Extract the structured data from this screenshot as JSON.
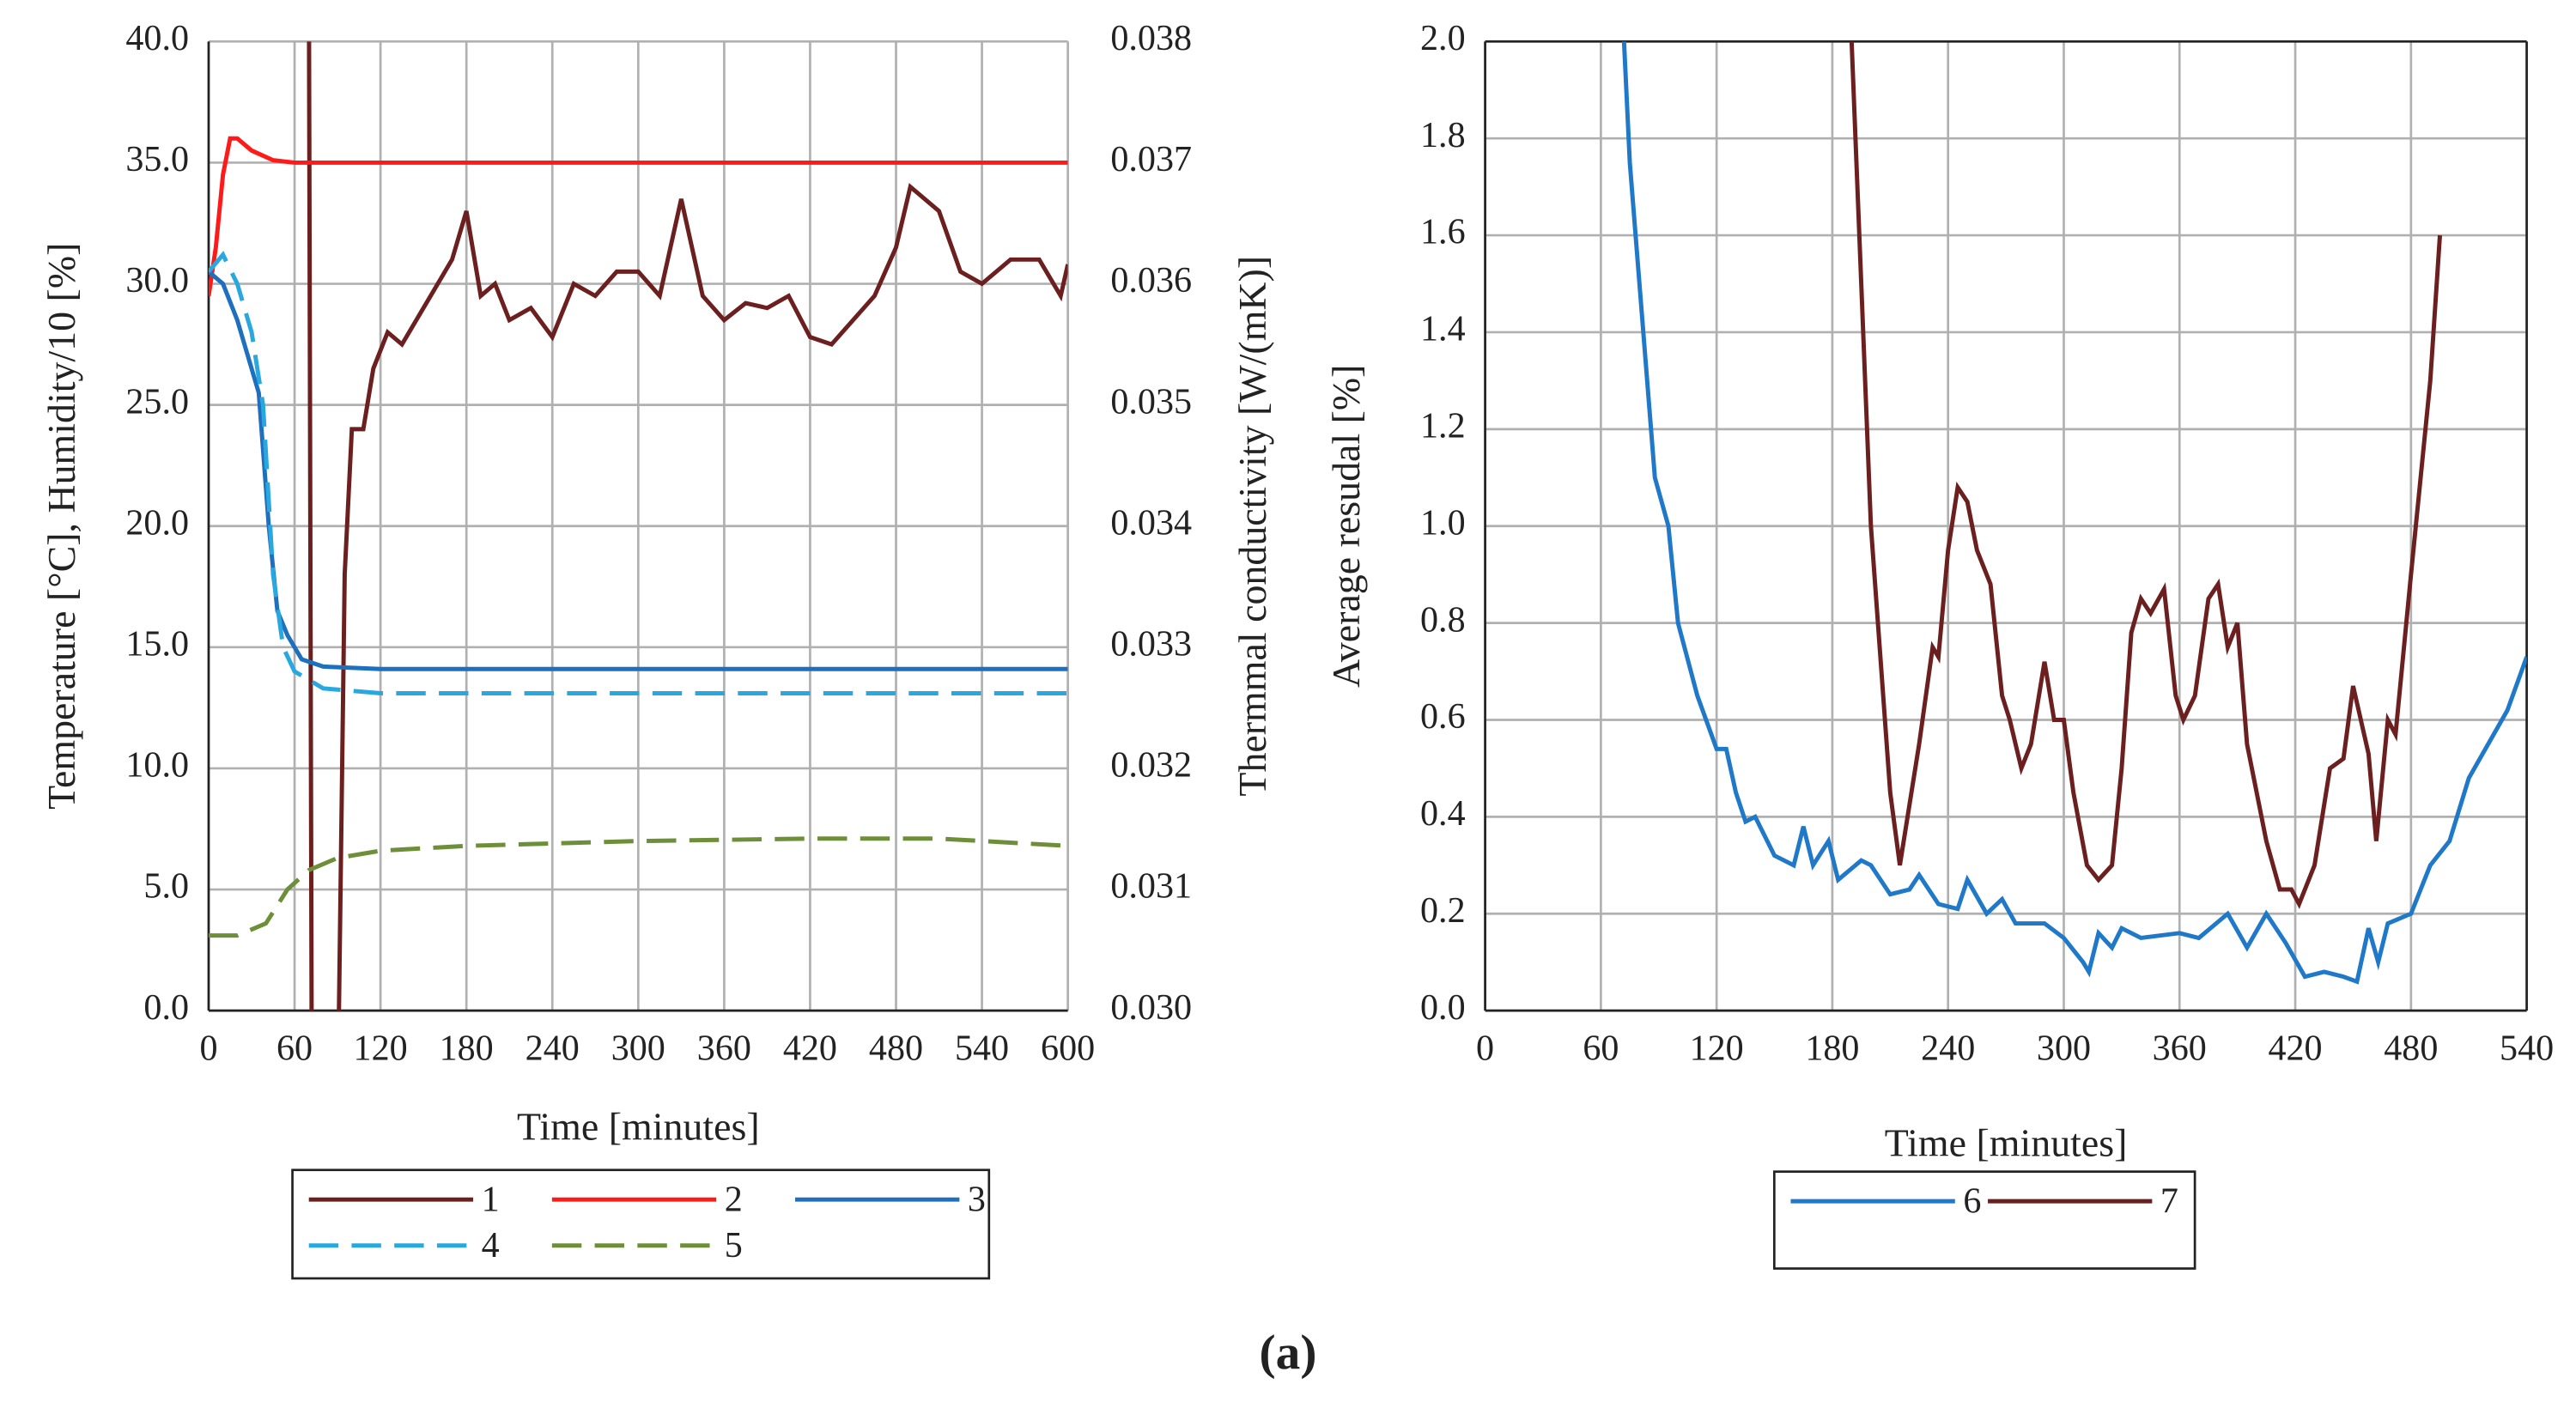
{
  "chart_data": [
    {
      "type": "line",
      "xlabel": "Time [minutes]",
      "ylabel": "Temperature [°C],  Humidity/10 [%]",
      "y2label": "Thermmal conductivity [W/(mK)]",
      "xlim": [
        0,
        600
      ],
      "xticks": [
        0,
        60,
        120,
        180,
        240,
        300,
        360,
        420,
        480,
        540,
        600
      ],
      "ylim": [
        0,
        40
      ],
      "yticks": [
        {
          "value": 0,
          "label": "0.0"
        },
        {
          "value": 5,
          "label": "5.0"
        },
        {
          "value": 10,
          "label": "10.0"
        },
        {
          "value": 15,
          "label": "15.0"
        },
        {
          "value": 20,
          "label": "20.0"
        },
        {
          "value": 25,
          "label": "25.0"
        },
        {
          "value": 30,
          "label": "30.0"
        },
        {
          "value": 35,
          "label": "35.0"
        },
        {
          "value": 40,
          "label": "40.0"
        }
      ],
      "y2lim": [
        0.03,
        0.038
      ],
      "y2ticks": [
        {
          "value": 0.03,
          "label": "0.030"
        },
        {
          "value": 0.031,
          "label": "0.031"
        },
        {
          "value": 0.032,
          "label": "0.032"
        },
        {
          "value": 0.033,
          "label": "0.033"
        },
        {
          "value": 0.034,
          "label": "0.034"
        },
        {
          "value": 0.035,
          "label": "0.035"
        },
        {
          "value": 0.036,
          "label": "0.036"
        },
        {
          "value": 0.037,
          "label": "0.037"
        },
        {
          "value": 0.038,
          "label": "0.038"
        }
      ],
      "grid": true,
      "series": [
        {
          "name": "1",
          "color": "#6b1f1f",
          "axis": "y2",
          "linestyle": "solid",
          "x": [
            70,
            72,
            90,
            91,
            95,
            100,
            108,
            115,
            125,
            135,
            145,
            160,
            170,
            180,
            190,
            200,
            210,
            225,
            240,
            255,
            270,
            285,
            300,
            315,
            330,
            345,
            360,
            375,
            390,
            405,
            420,
            435,
            450,
            465,
            480,
            490,
            510,
            525,
            540,
            560,
            580,
            595,
            600
          ],
          "values": [
            0.0385,
            0.0295,
            0.0295,
            0.03,
            0.0336,
            0.0348,
            0.0348,
            0.0353,
            0.0356,
            0.0355,
            0.0357,
            0.036,
            0.0362,
            0.0366,
            0.0359,
            0.036,
            0.0357,
            0.0358,
            0.03556,
            0.036,
            0.0359,
            0.0361,
            0.0361,
            0.0359,
            0.0367,
            0.0359,
            0.0357,
            0.03584,
            0.0358,
            0.0359,
            0.03556,
            0.0355,
            0.0357,
            0.0359,
            0.0363,
            0.0368,
            0.0366,
            0.0361,
            0.036,
            0.0362,
            0.0362,
            0.0359,
            0.03616
          ]
        },
        {
          "name": "2",
          "color": "#ff1a1a",
          "linestyle": "solid",
          "x": [
            0,
            5,
            10,
            15,
            20,
            30,
            45,
            60,
            600
          ],
          "values": [
            29.5,
            31.5,
            34.5,
            36,
            36,
            35.5,
            35.1,
            35,
            35
          ]
        },
        {
          "name": "3",
          "color": "#1f6fbf",
          "linestyle": "solid",
          "x": [
            0,
            10,
            20,
            35,
            42,
            48,
            55,
            65,
            80,
            120,
            600
          ],
          "values": [
            30.5,
            30,
            28.5,
            25.5,
            20,
            16.5,
            15.5,
            14.5,
            14.2,
            14.1,
            14.1
          ]
        },
        {
          "name": "4",
          "color": "#29a8e0",
          "linestyle": "dashed",
          "x": [
            0,
            10,
            20,
            30,
            38,
            45,
            52,
            60,
            80,
            120,
            600
          ],
          "values": [
            30.5,
            31.2,
            30,
            28,
            25,
            18,
            15,
            14,
            13.3,
            13.1,
            13.1
          ]
        },
        {
          "name": "5",
          "color": "#6e8f3a",
          "linestyle": "dashed",
          "x": [
            0,
            20,
            40,
            55,
            70,
            90,
            120,
            180,
            300,
            420,
            510,
            600
          ],
          "values": [
            3.1,
            3.1,
            3.6,
            5,
            5.8,
            6.3,
            6.6,
            6.8,
            7.0,
            7.1,
            7.1,
            6.8
          ]
        }
      ]
    },
    {
      "type": "line",
      "xlabel": "Time [minutes]",
      "ylabel": "Average resudal [%]",
      "xlim": [
        0,
        540
      ],
      "xticks": [
        0,
        60,
        120,
        180,
        240,
        300,
        360,
        420,
        480,
        540
      ],
      "ylim": [
        0,
        2
      ],
      "yticks": [
        {
          "value": 0,
          "label": "0.0"
        },
        {
          "value": 0.2,
          "label": "0.2"
        },
        {
          "value": 0.4,
          "label": "0.4"
        },
        {
          "value": 0.6,
          "label": "0.6"
        },
        {
          "value": 0.8,
          "label": "0.8"
        },
        {
          "value": 1,
          "label": "1.0"
        },
        {
          "value": 1.2,
          "label": "1.2"
        },
        {
          "value": 1.4,
          "label": "1.4"
        },
        {
          "value": 1.6,
          "label": "1.6"
        },
        {
          "value": 1.8,
          "label": "1.8"
        },
        {
          "value": 2,
          "label": "2.0"
        }
      ],
      "grid": true,
      "series": [
        {
          "name": "6",
          "color": "#1f78c8",
          "linestyle": "solid",
          "x": [
            72,
            75,
            80,
            88,
            95,
            100,
            110,
            120,
            125,
            130,
            135,
            140,
            150,
            160,
            165,
            170,
            178,
            183,
            195,
            200,
            210,
            220,
            225,
            235,
            245,
            250,
            260,
            268,
            275,
            290,
            300,
            310,
            313,
            318,
            325,
            330,
            340,
            360,
            370,
            385,
            395,
            405,
            415,
            425,
            435,
            445,
            452,
            458,
            463,
            468,
            480,
            490,
            500,
            510,
            520,
            530,
            540
          ],
          "values": [
            2.0,
            1.75,
            1.5,
            1.1,
            1.0,
            0.8,
            0.65,
            0.54,
            0.54,
            0.45,
            0.39,
            0.4,
            0.32,
            0.3,
            0.38,
            0.3,
            0.35,
            0.27,
            0.31,
            0.3,
            0.24,
            0.25,
            0.28,
            0.22,
            0.21,
            0.27,
            0.2,
            0.23,
            0.18,
            0.18,
            0.15,
            0.1,
            0.08,
            0.16,
            0.13,
            0.17,
            0.15,
            0.16,
            0.15,
            0.2,
            0.13,
            0.2,
            0.14,
            0.07,
            0.08,
            0.07,
            0.06,
            0.17,
            0.1,
            0.18,
            0.2,
            0.3,
            0.35,
            0.48,
            0.55,
            0.62,
            0.73
          ]
        },
        {
          "name": "7",
          "color": "#6b1f1f",
          "linestyle": "solid",
          "x": [
            190,
            195,
            200,
            210,
            215,
            225,
            232,
            235,
            240,
            245,
            250,
            255,
            262,
            268,
            272,
            278,
            283,
            290,
            295,
            300,
            305,
            312,
            318,
            325,
            330,
            335,
            340,
            345,
            352,
            358,
            362,
            368,
            375,
            380,
            385,
            390,
            395,
            405,
            412,
            418,
            422,
            430,
            438,
            445,
            450,
            458,
            462,
            468,
            472,
            480,
            490,
            495
          ],
          "values": [
            2.0,
            1.5,
            1.0,
            0.45,
            0.3,
            0.55,
            0.75,
            0.73,
            0.95,
            1.08,
            1.05,
            0.95,
            0.88,
            0.65,
            0.6,
            0.5,
            0.55,
            0.72,
            0.6,
            0.6,
            0.45,
            0.3,
            0.27,
            0.3,
            0.5,
            0.78,
            0.85,
            0.82,
            0.87,
            0.65,
            0.6,
            0.65,
            0.85,
            0.88,
            0.75,
            0.8,
            0.55,
            0.35,
            0.25,
            0.25,
            0.22,
            0.3,
            0.5,
            0.52,
            0.67,
            0.53,
            0.35,
            0.6,
            0.57,
            0.9,
            1.3,
            1.6
          ]
        }
      ]
    }
  ],
  "caption": "(a)"
}
